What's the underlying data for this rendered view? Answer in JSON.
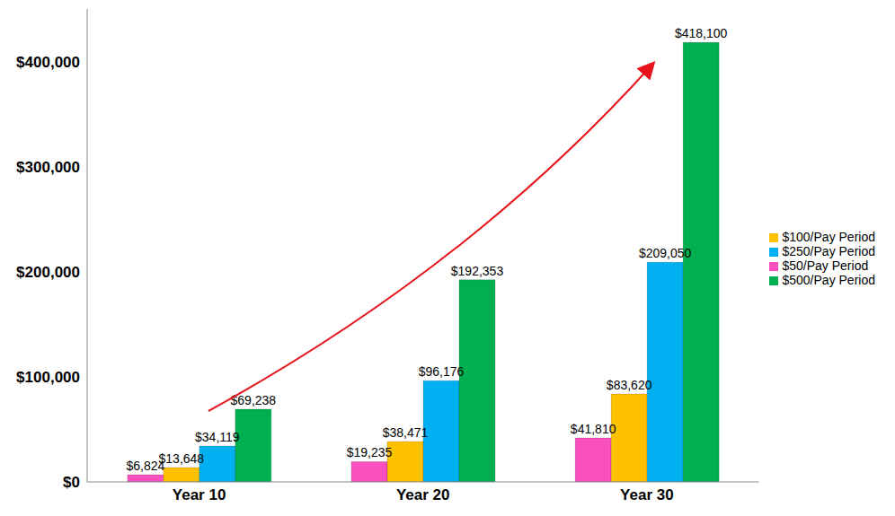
{
  "chart_data": {
    "type": "bar",
    "categories": [
      "Year 10",
      "Year 20",
      "Year 30"
    ],
    "series": [
      {
        "name": "$50/Pay Period",
        "color": "#f94fbf",
        "values": [
          6824,
          19235,
          41810
        ],
        "value_labels": [
          "$6,824",
          "$19,235",
          "$41,810"
        ]
      },
      {
        "name": "$100/Pay Period",
        "color": "#ffc000",
        "values": [
          13648,
          38471,
          83620
        ],
        "value_labels": [
          "$13,648",
          "$38,471",
          "$83,620"
        ]
      },
      {
        "name": "$250/Pay Period",
        "color": "#00b0f0",
        "values": [
          34119,
          96176,
          209050
        ],
        "value_labels": [
          "$34,119",
          "$96,176",
          "$209,050"
        ]
      },
      {
        "name": "$500/Pay Period",
        "color": "#00b050",
        "values": [
          69238,
          192353,
          418100
        ],
        "value_labels": [
          "$69,238",
          "$192,353",
          "$418,100"
        ]
      }
    ],
    "ylim": [
      0,
      450000
    ],
    "yticks": [
      {
        "value": 0,
        "label": "$0"
      },
      {
        "value": 100000,
        "label": "$100,000"
      },
      {
        "value": 200000,
        "label": "$200,000"
      },
      {
        "value": 300000,
        "label": "$300,000"
      },
      {
        "value": 400000,
        "label": "$400,000"
      }
    ],
    "grid": false,
    "legend": "right",
    "data_labels": true
  }
}
